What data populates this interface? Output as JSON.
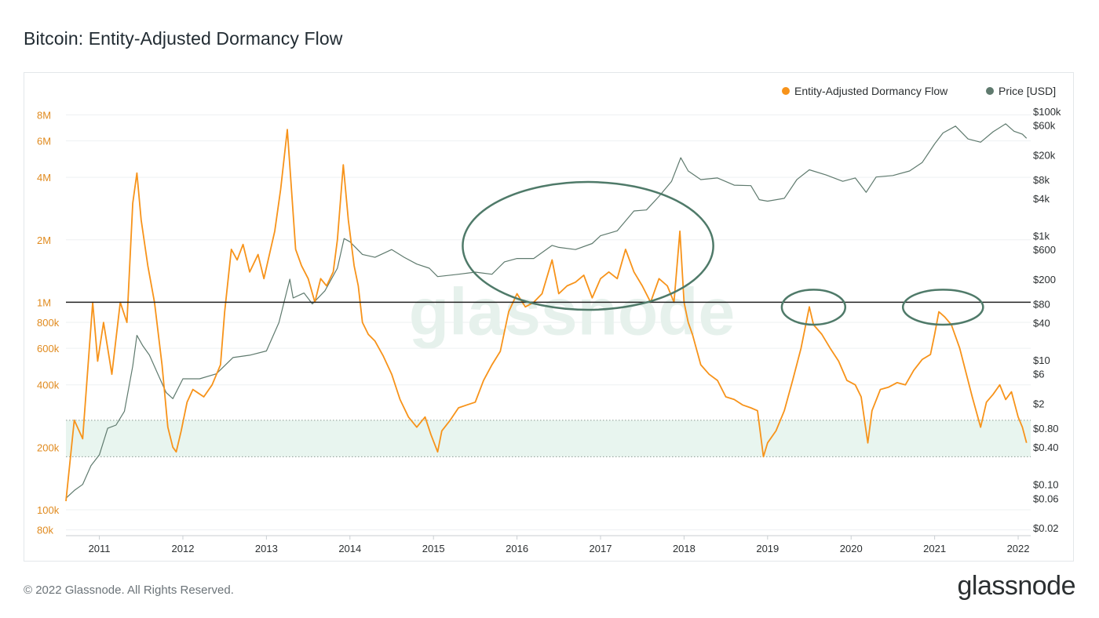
{
  "title": "Bitcoin: Entity-Adjusted Dormancy Flow",
  "footer": {
    "copyright": "© 2022 Glassnode. All Rights Reserved.",
    "logo": "glassnode"
  },
  "watermark": "glassnode",
  "colors": {
    "dormancy": "#f7931a",
    "price": "#5f7a6e",
    "band_fill": "#e8f5ef",
    "annotation": "#4f7a69",
    "left_axis_text": "#e08a1e",
    "right_axis_text": "#2b2f31",
    "grid": "#eef0f2"
  },
  "chart_data": {
    "type": "line",
    "title": "Bitcoin: Entity-Adjusted Dormancy Flow",
    "legend_position": "top-right",
    "grid": true,
    "x_axis": {
      "ticks": [
        "2011",
        "2012",
        "2013",
        "2014",
        "2015",
        "2016",
        "2017",
        "2018",
        "2019",
        "2020",
        "2021",
        "2022"
      ],
      "range": [
        2010.6,
        2022.15
      ]
    },
    "y_left": {
      "scale": "log",
      "range": [
        75000,
        9000000
      ],
      "ticks": [
        {
          "value": 8000000,
          "label": "8M"
        },
        {
          "value": 6000000,
          "label": "6M"
        },
        {
          "value": 4000000,
          "label": "4M"
        },
        {
          "value": 2000000,
          "label": "2M"
        },
        {
          "value": 1000000,
          "label": "1M"
        },
        {
          "value": 800000,
          "label": "800k"
        },
        {
          "value": 600000,
          "label": "600k"
        },
        {
          "value": 400000,
          "label": "400k"
        },
        {
          "value": 200000,
          "label": "200k"
        },
        {
          "value": 100000,
          "label": "100k"
        },
        {
          "value": 80000,
          "label": "80k"
        }
      ]
    },
    "y_right": {
      "scale": "log",
      "range": [
        0.015,
        130000
      ],
      "ticks": [
        {
          "value": 100000,
          "label": "$100k"
        },
        {
          "value": 60000,
          "label": "$60k"
        },
        {
          "value": 20000,
          "label": "$20k"
        },
        {
          "value": 8000,
          "label": "$8k"
        },
        {
          "value": 4000,
          "label": "$4k"
        },
        {
          "value": 1000,
          "label": "$1k"
        },
        {
          "value": 600,
          "label": "$600"
        },
        {
          "value": 200,
          "label": "$200"
        },
        {
          "value": 80,
          "label": "$80"
        },
        {
          "value": 40,
          "label": "$40"
        },
        {
          "value": 10,
          "label": "$10"
        },
        {
          "value": 6,
          "label": "$6"
        },
        {
          "value": 2,
          "label": "$2"
        },
        {
          "value": 0.8,
          "label": "$0.80"
        },
        {
          "value": 0.4,
          "label": "$0.40"
        },
        {
          "value": 0.1,
          "label": "$0.10"
        },
        {
          "value": 0.06,
          "label": "$0.06"
        },
        {
          "value": 0.02,
          "label": "$0.02"
        }
      ]
    },
    "series": [
      {
        "name": "Entity-Adjusted Dormancy Flow",
        "axis": "left",
        "points": [
          [
            2010.6,
            110000
          ],
          [
            2010.7,
            270000
          ],
          [
            2010.8,
            220000
          ],
          [
            2010.92,
            1000000
          ],
          [
            2010.98,
            520000
          ],
          [
            2011.05,
            800000
          ],
          [
            2011.15,
            450000
          ],
          [
            2011.25,
            1000000
          ],
          [
            2011.33,
            800000
          ],
          [
            2011.4,
            3000000
          ],
          [
            2011.45,
            4200000
          ],
          [
            2011.5,
            2500000
          ],
          [
            2011.58,
            1500000
          ],
          [
            2011.66,
            1000000
          ],
          [
            2011.75,
            500000
          ],
          [
            2011.82,
            250000
          ],
          [
            2011.88,
            200000
          ],
          [
            2011.92,
            190000
          ],
          [
            2011.98,
            240000
          ],
          [
            2012.05,
            330000
          ],
          [
            2012.12,
            380000
          ],
          [
            2012.25,
            350000
          ],
          [
            2012.35,
            400000
          ],
          [
            2012.45,
            500000
          ],
          [
            2012.5,
            900000
          ],
          [
            2012.58,
            1800000
          ],
          [
            2012.65,
            1600000
          ],
          [
            2012.72,
            1900000
          ],
          [
            2012.8,
            1400000
          ],
          [
            2012.9,
            1700000
          ],
          [
            2012.97,
            1300000
          ],
          [
            2013.05,
            1800000
          ],
          [
            2013.1,
            2200000
          ],
          [
            2013.17,
            3500000
          ],
          [
            2013.25,
            6800000
          ],
          [
            2013.3,
            3500000
          ],
          [
            2013.35,
            1800000
          ],
          [
            2013.42,
            1500000
          ],
          [
            2013.5,
            1300000
          ],
          [
            2013.58,
            1000000
          ],
          [
            2013.65,
            1300000
          ],
          [
            2013.72,
            1200000
          ],
          [
            2013.8,
            1400000
          ],
          [
            2013.85,
            2000000
          ],
          [
            2013.92,
            4600000
          ],
          [
            2013.98,
            2500000
          ],
          [
            2014.05,
            1500000
          ],
          [
            2014.1,
            1200000
          ],
          [
            2014.15,
            800000
          ],
          [
            2014.22,
            700000
          ],
          [
            2014.3,
            650000
          ],
          [
            2014.4,
            550000
          ],
          [
            2014.5,
            450000
          ],
          [
            2014.6,
            340000
          ],
          [
            2014.7,
            280000
          ],
          [
            2014.8,
            250000
          ],
          [
            2014.9,
            280000
          ],
          [
            2014.97,
            230000
          ],
          [
            2015.05,
            190000
          ],
          [
            2015.1,
            240000
          ],
          [
            2015.2,
            270000
          ],
          [
            2015.3,
            310000
          ],
          [
            2015.4,
            320000
          ],
          [
            2015.5,
            330000
          ],
          [
            2015.6,
            420000
          ],
          [
            2015.7,
            500000
          ],
          [
            2015.8,
            580000
          ],
          [
            2015.9,
            900000
          ],
          [
            2016.0,
            1100000
          ],
          [
            2016.1,
            950000
          ],
          [
            2016.2,
            1000000
          ],
          [
            2016.3,
            1100000
          ],
          [
            2016.42,
            1600000
          ],
          [
            2016.5,
            1100000
          ],
          [
            2016.6,
            1200000
          ],
          [
            2016.7,
            1250000
          ],
          [
            2016.8,
            1350000
          ],
          [
            2016.9,
            1050000
          ],
          [
            2017.0,
            1300000
          ],
          [
            2017.1,
            1400000
          ],
          [
            2017.2,
            1300000
          ],
          [
            2017.3,
            1800000
          ],
          [
            2017.4,
            1400000
          ],
          [
            2017.5,
            1200000
          ],
          [
            2017.6,
            1000000
          ],
          [
            2017.7,
            1300000
          ],
          [
            2017.8,
            1200000
          ],
          [
            2017.88,
            1000000
          ],
          [
            2017.95,
            2200000
          ],
          [
            2018.0,
            1000000
          ],
          [
            2018.05,
            800000
          ],
          [
            2018.1,
            700000
          ],
          [
            2018.2,
            500000
          ],
          [
            2018.3,
            450000
          ],
          [
            2018.4,
            420000
          ],
          [
            2018.5,
            350000
          ],
          [
            2018.6,
            340000
          ],
          [
            2018.7,
            320000
          ],
          [
            2018.8,
            310000
          ],
          [
            2018.88,
            300000
          ],
          [
            2018.95,
            180000
          ],
          [
            2019.0,
            210000
          ],
          [
            2019.1,
            240000
          ],
          [
            2019.2,
            300000
          ],
          [
            2019.3,
            420000
          ],
          [
            2019.4,
            600000
          ],
          [
            2019.5,
            950000
          ],
          [
            2019.55,
            780000
          ],
          [
            2019.65,
            700000
          ],
          [
            2019.75,
            600000
          ],
          [
            2019.85,
            520000
          ],
          [
            2019.95,
            420000
          ],
          [
            2020.05,
            400000
          ],
          [
            2020.12,
            350000
          ],
          [
            2020.2,
            210000
          ],
          [
            2020.25,
            300000
          ],
          [
            2020.35,
            380000
          ],
          [
            2020.45,
            390000
          ],
          [
            2020.55,
            410000
          ],
          [
            2020.65,
            400000
          ],
          [
            2020.75,
            470000
          ],
          [
            2020.85,
            530000
          ],
          [
            2020.95,
            560000
          ],
          [
            2021.0,
            700000
          ],
          [
            2021.05,
            900000
          ],
          [
            2021.12,
            850000
          ],
          [
            2021.2,
            780000
          ],
          [
            2021.3,
            600000
          ],
          [
            2021.38,
            450000
          ],
          [
            2021.45,
            350000
          ],
          [
            2021.55,
            250000
          ],
          [
            2021.62,
            330000
          ],
          [
            2021.7,
            360000
          ],
          [
            2021.78,
            400000
          ],
          [
            2021.85,
            340000
          ],
          [
            2021.92,
            370000
          ],
          [
            2022.0,
            280000
          ],
          [
            2022.05,
            250000
          ],
          [
            2022.1,
            210000
          ]
        ]
      },
      {
        "name": "Price [USD]",
        "axis": "right",
        "points": [
          [
            2010.6,
            0.06
          ],
          [
            2010.7,
            0.08
          ],
          [
            2010.8,
            0.1
          ],
          [
            2010.9,
            0.2
          ],
          [
            2011.0,
            0.3
          ],
          [
            2011.1,
            0.8
          ],
          [
            2011.2,
            0.9
          ],
          [
            2011.3,
            1.5
          ],
          [
            2011.4,
            8
          ],
          [
            2011.45,
            25
          ],
          [
            2011.52,
            17
          ],
          [
            2011.6,
            12
          ],
          [
            2011.7,
            6
          ],
          [
            2011.8,
            3
          ],
          [
            2011.88,
            2.4
          ],
          [
            2012.0,
            5
          ],
          [
            2012.2,
            5
          ],
          [
            2012.4,
            6
          ],
          [
            2012.6,
            11
          ],
          [
            2012.8,
            12
          ],
          [
            2013.0,
            14
          ],
          [
            2013.15,
            40
          ],
          [
            2013.28,
            200
          ],
          [
            2013.32,
            100
          ],
          [
            2013.45,
            120
          ],
          [
            2013.55,
            80
          ],
          [
            2013.7,
            130
          ],
          [
            2013.85,
            300
          ],
          [
            2013.93,
            900
          ],
          [
            2014.0,
            800
          ],
          [
            2014.15,
            500
          ],
          [
            2014.3,
            450
          ],
          [
            2014.5,
            600
          ],
          [
            2014.65,
            450
          ],
          [
            2014.8,
            350
          ],
          [
            2014.95,
            300
          ],
          [
            2015.05,
            220
          ],
          [
            2015.3,
            240
          ],
          [
            2015.5,
            260
          ],
          [
            2015.7,
            240
          ],
          [
            2015.85,
            380
          ],
          [
            2016.0,
            430
          ],
          [
            2016.2,
            430
          ],
          [
            2016.42,
            700
          ],
          [
            2016.5,
            650
          ],
          [
            2016.7,
            600
          ],
          [
            2016.9,
            750
          ],
          [
            2017.0,
            1000
          ],
          [
            2017.2,
            1200
          ],
          [
            2017.4,
            2500
          ],
          [
            2017.55,
            2600
          ],
          [
            2017.7,
            4300
          ],
          [
            2017.85,
            7500
          ],
          [
            2017.96,
            18000
          ],
          [
            2018.05,
            11000
          ],
          [
            2018.2,
            8000
          ],
          [
            2018.4,
            8500
          ],
          [
            2018.6,
            6500
          ],
          [
            2018.8,
            6400
          ],
          [
            2018.9,
            3800
          ],
          [
            2019.0,
            3600
          ],
          [
            2019.2,
            4000
          ],
          [
            2019.35,
            8000
          ],
          [
            2019.5,
            11500
          ],
          [
            2019.7,
            9500
          ],
          [
            2019.9,
            7500
          ],
          [
            2020.05,
            8500
          ],
          [
            2020.18,
            5000
          ],
          [
            2020.3,
            8800
          ],
          [
            2020.5,
            9300
          ],
          [
            2020.7,
            11000
          ],
          [
            2020.85,
            15000
          ],
          [
            2021.0,
            30000
          ],
          [
            2021.1,
            45000
          ],
          [
            2021.25,
            58000
          ],
          [
            2021.4,
            36000
          ],
          [
            2021.55,
            32000
          ],
          [
            2021.7,
            47000
          ],
          [
            2021.85,
            63000
          ],
          [
            2021.95,
            48000
          ],
          [
            2022.05,
            43000
          ],
          [
            2022.1,
            37000
          ]
        ]
      }
    ],
    "reference_band": {
      "axis": "left",
      "low": 180000,
      "high": 270000
    },
    "reference_line": {
      "axis": "left",
      "value": 1000000
    },
    "annotations": [
      {
        "type": "ellipse",
        "cx": 2016.85,
        "cy": 1500000,
        "rx_years": 1.5,
        "ry_span": [
          3800000,
          920000
        ]
      },
      {
        "type": "ellipse",
        "cx": 2019.55,
        "cy": 950000,
        "rx_years": 0.38,
        "ry_span": [
          1150000,
          780000
        ]
      },
      {
        "type": "ellipse",
        "cx": 2021.1,
        "cy": 950000,
        "rx_years": 0.48,
        "ry_span": [
          1150000,
          780000
        ]
      }
    ]
  }
}
